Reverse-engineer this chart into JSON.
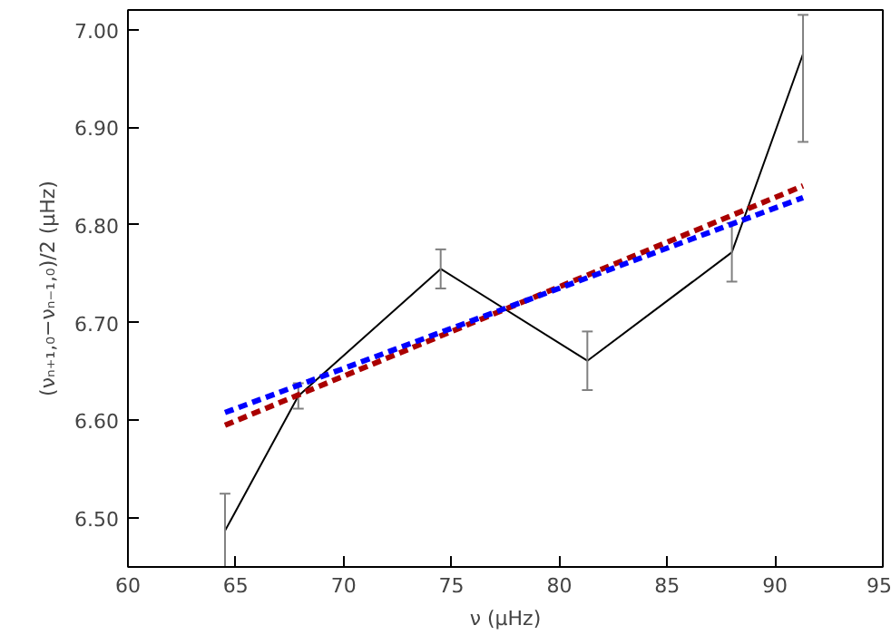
{
  "chart_data": {
    "type": "line",
    "xlabel": "ν (μHz)",
    "ylabel": "(νₙ₊₁,₀−νₙ₋₁,₀)/2 (μHz)",
    "xlim": [
      60,
      95
    ],
    "xticks": [
      60,
      65,
      70,
      75,
      80,
      85,
      90,
      95
    ],
    "ylim": [
      6.45,
      7.02
    ],
    "yticks": [
      {
        "value": 6.5,
        "label": "6.50"
      },
      {
        "value": 6.6,
        "label": "6.60"
      },
      {
        "value": 6.7,
        "label": "6.70"
      },
      {
        "value": 6.8,
        "label": "6.80"
      },
      {
        "value": 6.9,
        "label": "6.90"
      },
      {
        "value": 7.0,
        "label": "7.00"
      }
    ],
    "grid": false,
    "series": [
      {
        "color": "#000000",
        "line_style": "solid",
        "x": [
          64.5,
          67.9,
          74.5,
          81.3,
          88.0,
          91.3
        ],
        "values": [
          6.487,
          6.625,
          6.755,
          6.661,
          6.772,
          6.975
        ],
        "errors": [
          0.038,
          0.013,
          0.02,
          0.03,
          0.03,
          [
            6.885,
            7.015
          ]
        ]
      },
      {
        "color": "#aa0000",
        "line_style": "dashed",
        "x": [
          64.5,
          91.3
        ],
        "values": [
          6.595,
          6.84
        ]
      },
      {
        "color": "#0000ff",
        "line_style": "dashed",
        "x": [
          64.5,
          91.3
        ],
        "values": [
          6.608,
          6.828
        ]
      }
    ]
  }
}
